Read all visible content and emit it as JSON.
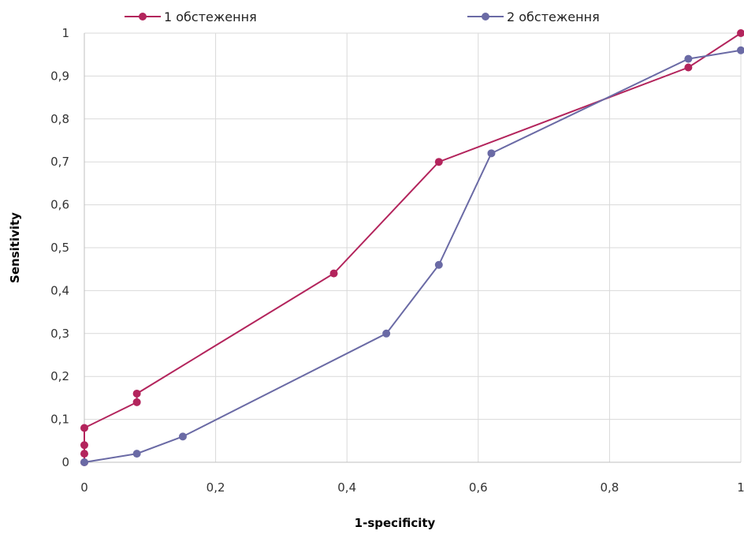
{
  "chart_data": {
    "type": "line",
    "title": "",
    "xlabel": "1-specificity",
    "ylabel": "Sensitivity",
    "xlim": [
      0,
      1
    ],
    "ylim": [
      0,
      1
    ],
    "x_ticks": [
      "0",
      "0,2",
      "0,4",
      "0,6",
      "0,8",
      "1"
    ],
    "y_ticks": [
      "0",
      "0,1",
      "0,2",
      "0,3",
      "0,4",
      "0,5",
      "0,6",
      "0,7",
      "0,8",
      "0,9",
      "1"
    ],
    "grid": true,
    "legend_position": "top",
    "series": [
      {
        "name": "1 обстеження",
        "color": "#b3245c",
        "x": [
          0,
          0,
          0,
          0,
          0.08,
          0.08,
          0.38,
          0.54,
          0.92,
          1
        ],
        "y": [
          0,
          0.02,
          0.04,
          0.08,
          0.14,
          0.16,
          0.44,
          0.7,
          0.92,
          1.0
        ]
      },
      {
        "name": "2 обстеження",
        "color": "#6a6aa5",
        "x": [
          0,
          0.08,
          0.15,
          0.46,
          0.54,
          0.62,
          0.92,
          1
        ],
        "y": [
          0,
          0.02,
          0.06,
          0.3,
          0.46,
          0.72,
          0.94,
          0.96
        ]
      }
    ]
  }
}
